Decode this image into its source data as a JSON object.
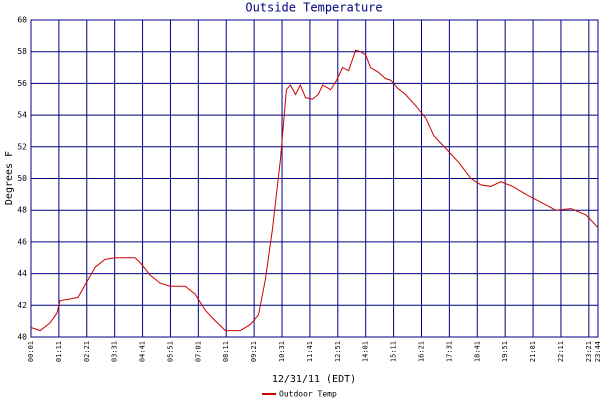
{
  "chart_data": {
    "type": "line",
    "title": "Outside Temperature",
    "xlabel": "12/31/11 (EDT)",
    "ylabel": "Degrees F",
    "x": [
      1,
      24,
      49,
      66,
      74,
      99,
      119,
      137,
      162,
      187,
      212,
      262,
      275,
      300,
      325,
      350,
      388,
      413,
      438,
      464,
      489,
      526,
      552,
      572,
      589,
      607,
      627,
      642,
      652,
      665,
      677,
      690,
      707,
      722,
      733,
      753,
      768,
      783,
      798,
      816,
      828,
      841,
      853,
      873,
      891,
      904,
      921,
      941,
      966,
      992,
      1012,
      1042,
      1075,
      1105,
      1130,
      1155,
      1180,
      1210,
      1243,
      1281,
      1318,
      1356,
      1394,
      1424
    ],
    "series": [
      {
        "name": "Outdoor Temp",
        "color": "#cc0000",
        "values": [
          40.6,
          40.4,
          40.9,
          41.5,
          42.3,
          42.4,
          42.5,
          43.3,
          44.4,
          44.9,
          45.0,
          45.0,
          44.7,
          43.9,
          43.4,
          43.2,
          43.2,
          42.7,
          41.7,
          41.0,
          40.4,
          40.4,
          40.8,
          41.4,
          43.6,
          46.8,
          51.2,
          55.6,
          55.9,
          55.3,
          55.9,
          55.1,
          55.0,
          55.3,
          55.9,
          55.6,
          56.2,
          57.0,
          56.8,
          58.1,
          58.0,
          57.8,
          57.0,
          56.7,
          56.3,
          56.2,
          55.7,
          55.3,
          54.6,
          53.8,
          52.7,
          51.9,
          51.0,
          50.0,
          49.6,
          49.5,
          49.8,
          49.5,
          49.0,
          48.5,
          48.0,
          48.1,
          47.7,
          46.9
        ]
      }
    ],
    "xlim": [
      1,
      1424
    ],
    "xticks": [
      {
        "value": 1,
        "label": "00:01"
      },
      {
        "value": 71,
        "label": "01:11"
      },
      {
        "value": 141,
        "label": "02:21"
      },
      {
        "value": 211,
        "label": "03:31"
      },
      {
        "value": 281,
        "label": "04:41"
      },
      {
        "value": 351,
        "label": "05:51"
      },
      {
        "value": 421,
        "label": "07:01"
      },
      {
        "value": 491,
        "label": "08:11"
      },
      {
        "value": 561,
        "label": "09:21"
      },
      {
        "value": 631,
        "label": "10:31"
      },
      {
        "value": 701,
        "label": "11:41"
      },
      {
        "value": 771,
        "label": "12:51"
      },
      {
        "value": 841,
        "label": "14:01"
      },
      {
        "value": 911,
        "label": "15:11"
      },
      {
        "value": 981,
        "label": "16:21"
      },
      {
        "value": 1051,
        "label": "17:31"
      },
      {
        "value": 1121,
        "label": "18:41"
      },
      {
        "value": 1191,
        "label": "19:51"
      },
      {
        "value": 1261,
        "label": "21:01"
      },
      {
        "value": 1331,
        "label": "22:11"
      },
      {
        "value": 1401,
        "label": "23:21"
      },
      {
        "value": 1424,
        "label": "23:44"
      }
    ],
    "ylim": [
      40,
      60
    ],
    "yticks": [
      40,
      42,
      44,
      46,
      48,
      50,
      52,
      54,
      56,
      58,
      60
    ],
    "grid": true
  }
}
